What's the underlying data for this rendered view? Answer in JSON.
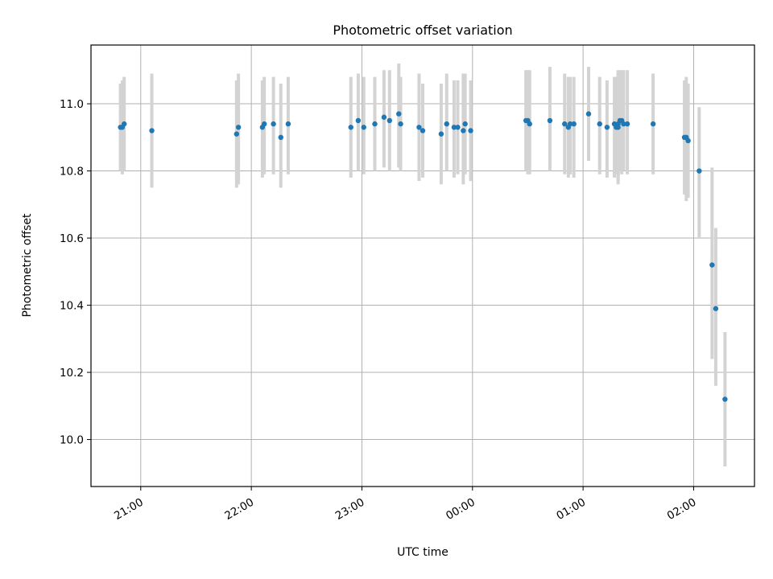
{
  "chart_data": {
    "type": "scatter",
    "title": "Photometric offset variation",
    "xlabel": "UTC time",
    "ylabel": "Photometric offset",
    "grid": true,
    "legend": "none",
    "x_is_time": true,
    "xlim": [
      "20:33",
      "02:33"
    ],
    "ylim": [
      9.86,
      11.175
    ],
    "yticks": [
      10.0,
      10.2,
      10.4,
      10.6,
      10.8,
      11.0
    ],
    "ytick_labels": [
      "10.0",
      "10.2",
      "10.4",
      "10.6",
      "10.8",
      "11.0"
    ],
    "xtick_labels": [
      "21:00",
      "22:00",
      "23:00",
      "00:00",
      "01:00",
      "02:00"
    ],
    "colors": {
      "point": "#1f77b4",
      "errorbar": "#d3d3d3",
      "grid": "#b0b0b0"
    },
    "series": [
      {
        "x": [
          "20:49",
          "20:50",
          "20:51",
          "21:06",
          "21:52",
          "21:53",
          "22:06",
          "22:07",
          "22:12",
          "22:16",
          "22:20",
          "22:54",
          "22:58",
          "23:01",
          "23:07",
          "23:12",
          "23:15",
          "23:20",
          "23:21",
          "23:31",
          "23:33",
          "23:43",
          "23:46",
          "23:50",
          "23:52",
          "23:55",
          "23:56",
          "23:59",
          "00:29",
          "00:30",
          "00:31",
          "00:42",
          "00:50",
          "00:52",
          "00:53",
          "00:55",
          "01:03",
          "01:09",
          "01:13",
          "01:17",
          "01:18",
          "01:19",
          "01:19",
          "01:20",
          "01:21",
          "01:22",
          "01:24",
          "01:38",
          "01:55",
          "01:56",
          "01:57",
          "02:03",
          "02:10",
          "02:12",
          "02:17"
        ],
        "y": [
          10.93,
          10.93,
          10.94,
          10.92,
          10.91,
          10.93,
          10.93,
          10.94,
          10.94,
          10.9,
          10.94,
          10.93,
          10.95,
          10.93,
          10.94,
          10.96,
          10.95,
          10.97,
          10.94,
          10.93,
          10.92,
          10.91,
          10.94,
          10.93,
          10.93,
          10.92,
          10.94,
          10.92,
          10.95,
          10.95,
          10.94,
          10.95,
          10.94,
          10.93,
          10.94,
          10.94,
          10.97,
          10.94,
          10.93,
          10.94,
          10.93,
          10.94,
          10.93,
          10.95,
          10.95,
          10.94,
          10.94,
          10.94,
          10.9,
          10.9,
          10.89,
          10.8,
          10.52,
          10.39,
          10.12
        ],
        "err_low": [
          10.8,
          10.79,
          10.8,
          10.75,
          10.75,
          10.76,
          10.78,
          10.79,
          10.79,
          10.75,
          10.79,
          10.78,
          10.8,
          10.79,
          10.8,
          10.81,
          10.8,
          10.81,
          10.8,
          10.77,
          10.78,
          10.76,
          10.8,
          10.78,
          10.79,
          10.76,
          10.79,
          10.77,
          10.8,
          10.79,
          10.79,
          10.8,
          10.79,
          10.78,
          10.79,
          10.78,
          10.83,
          10.79,
          10.78,
          10.78,
          10.79,
          10.76,
          10.77,
          10.8,
          10.79,
          10.8,
          10.79,
          10.79,
          10.73,
          10.71,
          10.72,
          10.6,
          10.24,
          10.16,
          9.92
        ],
        "err_high": [
          11.06,
          11.07,
          11.08,
          11.09,
          11.07,
          11.09,
          11.07,
          11.08,
          11.08,
          11.06,
          11.08,
          11.08,
          11.09,
          11.08,
          11.08,
          11.1,
          11.1,
          11.12,
          11.08,
          11.09,
          11.06,
          11.06,
          11.09,
          11.07,
          11.07,
          11.09,
          11.09,
          11.07,
          11.1,
          11.1,
          11.1,
          11.11,
          11.09,
          11.08,
          11.08,
          11.08,
          11.11,
          11.08,
          11.07,
          11.08,
          11.08,
          11.09,
          11.1,
          11.1,
          11.1,
          11.1,
          11.1,
          11.09,
          11.07,
          11.08,
          11.06,
          10.99,
          10.81,
          10.63,
          10.32
        ]
      }
    ]
  }
}
